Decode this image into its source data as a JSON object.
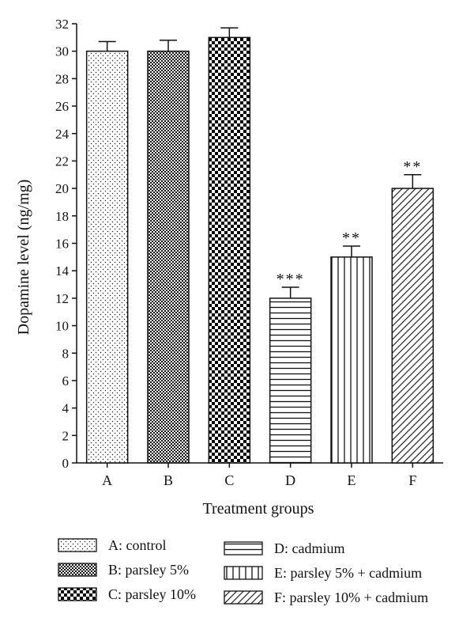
{
  "chart_data": {
    "type": "bar",
    "xlabel": "Treatment groups",
    "ylabel": "Dopamine level (ng/mg)",
    "ylim": [
      0,
      32
    ],
    "yticks": [
      0,
      2,
      4,
      6,
      8,
      10,
      12,
      14,
      16,
      18,
      20,
      22,
      24,
      26,
      28,
      30,
      32
    ],
    "grid": false,
    "categories": [
      "A",
      "B",
      "C",
      "D",
      "E",
      "F"
    ],
    "values": [
      30,
      30,
      31,
      12,
      15,
      20
    ],
    "errors": [
      0.7,
      0.8,
      0.7,
      0.8,
      0.8,
      1.0
    ],
    "significance": [
      "",
      "",
      "",
      "***",
      "**",
      "**"
    ],
    "patterns": [
      "dots",
      "fine-checker",
      "coarse-checker",
      "horizontal-lines",
      "vertical-lines",
      "diagonal-hatch"
    ],
    "legend": [
      {
        "key": "A",
        "label": "A: control",
        "pattern": "dots"
      },
      {
        "key": "B",
        "label": "B: parsley 5%",
        "pattern": "fine-checker"
      },
      {
        "key": "C",
        "label": "C: parsley 10%",
        "pattern": "coarse-checker"
      },
      {
        "key": "D",
        "label": "D: cadmium",
        "pattern": "horizontal-lines"
      },
      {
        "key": "E",
        "label": "E: parsley 5% + cadmium",
        "pattern": "vertical-lines"
      },
      {
        "key": "F",
        "label": "F: parsley 10% + cadmium",
        "pattern": "diagonal-hatch"
      }
    ],
    "legend_position": "bottom"
  }
}
